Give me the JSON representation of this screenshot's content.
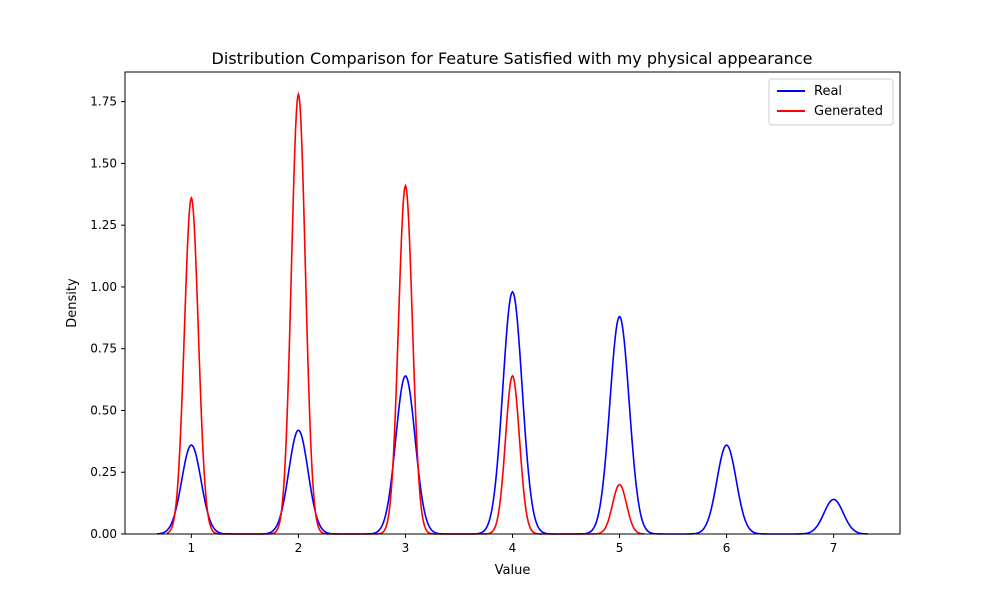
{
  "chart_data": {
    "type": "line",
    "title": "Distribution Comparison for Feature Satisfied with my physical appearance",
    "xlabel": "Value",
    "ylabel": "Density",
    "xlim": [
      0.38,
      7.62
    ],
    "ylim": [
      0,
      1.87
    ],
    "xticks": [
      1,
      2,
      3,
      4,
      5,
      6,
      7
    ],
    "yticks": [
      0.0,
      0.25,
      0.5,
      0.75,
      1.0,
      1.25,
      1.5,
      1.75
    ],
    "grid": false,
    "legend_position": "top-right",
    "series": [
      {
        "name": "Real",
        "color": "#0000ff",
        "x_range": [
          0.68,
          7.32
        ],
        "peaks": [
          {
            "center": 1,
            "height": 0.36
          },
          {
            "center": 2,
            "height": 0.42
          },
          {
            "center": 3,
            "height": 0.64
          },
          {
            "center": 4,
            "height": 0.98
          },
          {
            "center": 5,
            "height": 0.88
          },
          {
            "center": 6,
            "height": 0.36
          },
          {
            "center": 7,
            "height": 0.14
          }
        ]
      },
      {
        "name": "Generated",
        "color": "#ff0000",
        "x_range": [
          0.77,
          5.23
        ],
        "peaks": [
          {
            "center": 1,
            "height": 1.36
          },
          {
            "center": 2,
            "height": 1.78
          },
          {
            "center": 3,
            "height": 1.41
          },
          {
            "center": 4,
            "height": 0.64
          },
          {
            "center": 5,
            "height": 0.2
          }
        ]
      }
    ]
  }
}
